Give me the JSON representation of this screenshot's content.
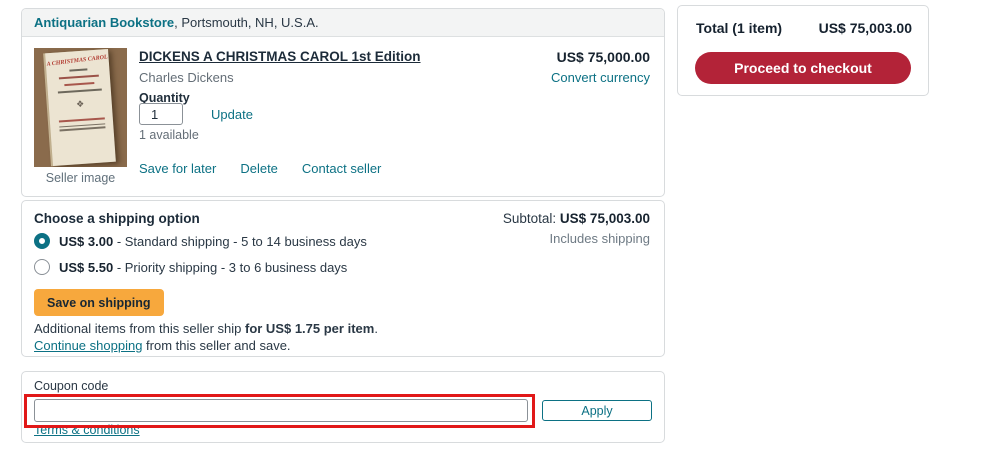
{
  "seller_header": {
    "name": "Antiquarian Bookstore",
    "location": ", Portsmouth, NH, U.S.A."
  },
  "item": {
    "title": "DICKENS A CHRISTMAS CAROL 1st Edition",
    "author": "Charles Dickens",
    "quantity_label": "Quantity",
    "quantity_value": "1",
    "update_label": "Update",
    "availability": "1 available",
    "save_for_later_label": "Save for later",
    "delete_label": "Delete",
    "contact_seller_label": "Contact seller",
    "price": "US$ 75,000.00",
    "convert_currency_label": "Convert currency",
    "image_caption": "Seller image",
    "cover_title": "A CHRISTMAS CAROL",
    "cover_ornament": "❖"
  },
  "shipping": {
    "heading": "Choose a shipping option",
    "options": [
      {
        "price": "US$ 3.00",
        "description": " - Standard shipping - 5 to 14 business days",
        "selected": true
      },
      {
        "price": "US$ 5.50",
        "description": " - Priority shipping - 3 to 6 business days",
        "selected": false
      }
    ],
    "subtotal_label": "Subtotal: ",
    "subtotal_value": "US$ 75,003.00",
    "subtotal_note": "Includes shipping",
    "save_button_label": "Save on shipping",
    "additional_text_before": "Additional items from this seller ship ",
    "additional_text_bold": "for US$ 1.75 per item",
    "additional_text_after": ".",
    "continue_link_label": "Continue shopping",
    "continue_rest": " from this seller and save."
  },
  "coupon": {
    "label": "Coupon code",
    "input_value": "",
    "apply_button_label": "Apply",
    "terms_link_label": "Terms & conditions"
  },
  "summary": {
    "total_label": "Total (1 item)",
    "total_value": "US$ 75,003.00",
    "checkout_button_label": "Proceed to checkout"
  },
  "colors": {
    "link_teal": "#0c7184",
    "checkout_red": "#b32338",
    "annotation_red": "#e11818",
    "save_shipping_orange": "#f7a83d",
    "header_bar_gray": "#f3f4f4",
    "card_border_gray": "#d8dbdd",
    "text_dark": "#1c2b39",
    "text_muted": "#646e77"
  }
}
